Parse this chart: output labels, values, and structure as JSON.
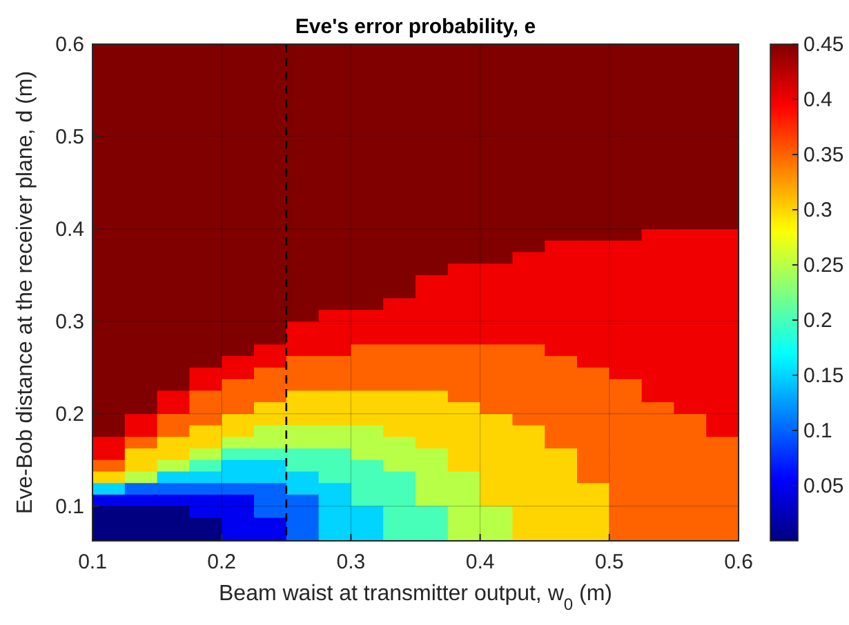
{
  "chart_data": {
    "type": "heatmap",
    "title": "Eve's error probability, e",
    "xlabel": "Beam waist at transmitter output, w$_{0}$ (m)",
    "ylabel": "Eve-Bob distance at the receiver plane, d (m)",
    "xlim": [
      0.1,
      0.6
    ],
    "xticks": [
      0.1,
      0.2,
      0.3,
      0.4,
      0.5,
      0.6
    ],
    "ylim": [
      0.0625,
      0.6
    ],
    "yticks": [
      0.1,
      0.2,
      0.3,
      0.4,
      0.5,
      0.6
    ],
    "clim": [
      0,
      0.45
    ],
    "cticks": [
      0.05,
      0.1,
      0.15,
      0.2,
      0.25,
      0.3,
      0.35,
      0.4,
      0.45
    ],
    "grid": true,
    "ref_lines": [
      {
        "axis": "x",
        "value": 0.25,
        "label": null,
        "color": "#000000",
        "line_style": "dashed"
      }
    ],
    "cells": [
      [
        0.45,
        0.45,
        0.45,
        0.45,
        0.45,
        0.45,
        0.45,
        0.45,
        0.45,
        0.45,
        0.45,
        0.45,
        0.45,
        0.45,
        0.45,
        0.45,
        0.45,
        0.45,
        0.45,
        0.45
      ],
      [
        0.45,
        0.45,
        0.45,
        0.45,
        0.45,
        0.45,
        0.45,
        0.45,
        0.45,
        0.45,
        0.45,
        0.45,
        0.45,
        0.45,
        0.45,
        0.45,
        0.45,
        0.45,
        0.45,
        0.45
      ],
      [
        0.45,
        0.45,
        0.45,
        0.45,
        0.45,
        0.45,
        0.45,
        0.45,
        0.45,
        0.45,
        0.45,
        0.45,
        0.45,
        0.45,
        0.45,
        0.45,
        0.45,
        0.45,
        0.45,
        0.45
      ],
      [
        0.45,
        0.45,
        0.45,
        0.45,
        0.45,
        0.45,
        0.45,
        0.45,
        0.45,
        0.45,
        0.45,
        0.45,
        0.45,
        0.45,
        0.45,
        0.45,
        0.45,
        0.45,
        0.45,
        0.45
      ],
      [
        0.45,
        0.45,
        0.45,
        0.45,
        0.45,
        0.45,
        0.45,
        0.45,
        0.45,
        0.45,
        0.45,
        0.45,
        0.45,
        0.45,
        0.45,
        0.45,
        0.45,
        0.45,
        0.45,
        0.45
      ],
      [
        0.45,
        0.45,
        0.45,
        0.45,
        0.45,
        0.45,
        0.45,
        0.45,
        0.45,
        0.45,
        0.45,
        0.45,
        0.45,
        0.45,
        0.45,
        0.45,
        0.45,
        0.45,
        0.45,
        0.45
      ],
      [
        0.45,
        0.45,
        0.45,
        0.45,
        0.45,
        0.45,
        0.45,
        0.45,
        0.45,
        0.45,
        0.45,
        0.45,
        0.45,
        0.45,
        0.45,
        0.45,
        0.45,
        0.45,
        0.45,
        0.45
      ],
      [
        0.45,
        0.45,
        0.45,
        0.45,
        0.45,
        0.45,
        0.45,
        0.45,
        0.45,
        0.45,
        0.45,
        0.45,
        0.45,
        0.45,
        0.45,
        0.45,
        0.45,
        0.45,
        0.45,
        0.45
      ],
      [
        0.45,
        0.45,
        0.45,
        0.45,
        0.45,
        0.45,
        0.45,
        0.45,
        0.45,
        0.45,
        0.45,
        0.45,
        0.45,
        0.45,
        0.45,
        0.45,
        0.45,
        0.45,
        0.45,
        0.45
      ],
      [
        0.45,
        0.45,
        0.45,
        0.45,
        0.45,
        0.45,
        0.45,
        0.45,
        0.45,
        0.45,
        0.45,
        0.45,
        0.45,
        0.45,
        0.45,
        0.45,
        0.45,
        0.45,
        0.45,
        0.45
      ],
      [
        0.45,
        0.45,
        0.45,
        0.45,
        0.45,
        0.45,
        0.45,
        0.45,
        0.45,
        0.45,
        0.45,
        0.45,
        0.45,
        0.45,
        0.45,
        0.45,
        0.45,
        0.45,
        0.45,
        0.45
      ],
      [
        0.45,
        0.45,
        0.45,
        0.45,
        0.45,
        0.45,
        0.45,
        0.45,
        0.45,
        0.45,
        0.45,
        0.45,
        0.45,
        0.45,
        0.45,
        0.45,
        0.45,
        0.45,
        0.45,
        0.45
      ],
      [
        0.45,
        0.45,
        0.45,
        0.45,
        0.45,
        0.45,
        0.45,
        0.45,
        0.45,
        0.45,
        0.45,
        0.45,
        0.45,
        0.45,
        0.45,
        0.45,
        0.45,
        0.45,
        0.45,
        0.45
      ],
      [
        0.45,
        0.45,
        0.45,
        0.45,
        0.45,
        0.45,
        0.45,
        0.45,
        0.45,
        0.45,
        0.45,
        0.45,
        0.45,
        0.45,
        0.45,
        0.45,
        0.45,
        0.45,
        0.45,
        0.45
      ],
      [
        0.45,
        0.45,
        0.45,
        0.45,
        0.45,
        0.45,
        0.45,
        0.45,
        0.45,
        0.45,
        0.45,
        0.45,
        0.45,
        0.45,
        0.45,
        0.45,
        0.45,
        0.45,
        0.45,
        0.45
      ],
      [
        0.45,
        0.45,
        0.45,
        0.45,
        0.45,
        0.45,
        0.45,
        0.45,
        0.45,
        0.45,
        0.45,
        0.45,
        0.45,
        0.45,
        0.45,
        0.45,
        0.45,
        0.45,
        0.45,
        0.45
      ],
      [
        0.45,
        0.45,
        0.45,
        0.45,
        0.45,
        0.45,
        0.45,
        0.45,
        0.45,
        0.45,
        0.45,
        0.45,
        0.45,
        0.45,
        0.45,
        0.45,
        0.45,
        0.4,
        0.4,
        0.4
      ],
      [
        0.45,
        0.45,
        0.45,
        0.45,
        0.45,
        0.45,
        0.45,
        0.45,
        0.45,
        0.45,
        0.45,
        0.45,
        0.45,
        0.45,
        0.4,
        0.4,
        0.4,
        0.4,
        0.4,
        0.4
      ],
      [
        0.45,
        0.45,
        0.45,
        0.45,
        0.45,
        0.45,
        0.45,
        0.45,
        0.45,
        0.45,
        0.45,
        0.45,
        0.45,
        0.4,
        0.4,
        0.4,
        0.4,
        0.4,
        0.4,
        0.4
      ],
      [
        0.45,
        0.45,
        0.45,
        0.45,
        0.45,
        0.45,
        0.45,
        0.45,
        0.45,
        0.45,
        0.45,
        0.4,
        0.4,
        0.4,
        0.4,
        0.4,
        0.4,
        0.4,
        0.4,
        0.4
      ],
      [
        0.45,
        0.45,
        0.45,
        0.45,
        0.45,
        0.45,
        0.45,
        0.45,
        0.45,
        0.45,
        0.4,
        0.4,
        0.4,
        0.4,
        0.4,
        0.4,
        0.4,
        0.4,
        0.4,
        0.4
      ],
      [
        0.45,
        0.45,
        0.45,
        0.45,
        0.45,
        0.45,
        0.45,
        0.45,
        0.45,
        0.45,
        0.4,
        0.4,
        0.4,
        0.4,
        0.4,
        0.4,
        0.4,
        0.4,
        0.4,
        0.4
      ],
      [
        0.45,
        0.45,
        0.45,
        0.45,
        0.45,
        0.45,
        0.45,
        0.45,
        0.45,
        0.4,
        0.4,
        0.4,
        0.4,
        0.4,
        0.4,
        0.4,
        0.4,
        0.4,
        0.4,
        0.4
      ],
      [
        0.45,
        0.45,
        0.45,
        0.45,
        0.45,
        0.45,
        0.45,
        0.4,
        0.4,
        0.4,
        0.4,
        0.4,
        0.4,
        0.4,
        0.4,
        0.4,
        0.4,
        0.4,
        0.4,
        0.4
      ],
      [
        0.45,
        0.45,
        0.45,
        0.45,
        0.45,
        0.45,
        0.4,
        0.4,
        0.4,
        0.4,
        0.4,
        0.4,
        0.4,
        0.4,
        0.4,
        0.4,
        0.4,
        0.4,
        0.4,
        0.4
      ],
      [
        0.45,
        0.45,
        0.45,
        0.45,
        0.45,
        0.45,
        0.4,
        0.4,
        0.4,
        0.4,
        0.4,
        0.4,
        0.4,
        0.4,
        0.4,
        0.4,
        0.4,
        0.4,
        0.4,
        0.4
      ],
      [
        0.45,
        0.45,
        0.45,
        0.45,
        0.45,
        0.4,
        0.4,
        0.4,
        0.35,
        0.35,
        0.35,
        0.35,
        0.35,
        0.35,
        0.4,
        0.4,
        0.4,
        0.4,
        0.4,
        0.4
      ],
      [
        0.45,
        0.45,
        0.45,
        0.45,
        0.4,
        0.4,
        0.35,
        0.35,
        0.35,
        0.35,
        0.35,
        0.35,
        0.35,
        0.35,
        0.35,
        0.4,
        0.4,
        0.4,
        0.4,
        0.4
      ],
      [
        0.45,
        0.45,
        0.45,
        0.4,
        0.4,
        0.35,
        0.35,
        0.35,
        0.35,
        0.35,
        0.35,
        0.35,
        0.35,
        0.35,
        0.35,
        0.35,
        0.4,
        0.4,
        0.4,
        0.4
      ],
      [
        0.45,
        0.45,
        0.45,
        0.4,
        0.35,
        0.35,
        0.35,
        0.35,
        0.35,
        0.35,
        0.35,
        0.35,
        0.35,
        0.35,
        0.35,
        0.35,
        0.35,
        0.4,
        0.4,
        0.4
      ],
      [
        0.45,
        0.45,
        0.4,
        0.35,
        0.35,
        0.35,
        0.3,
        0.3,
        0.3,
        0.3,
        0.3,
        0.35,
        0.35,
        0.35,
        0.35,
        0.35,
        0.35,
        0.4,
        0.4,
        0.4
      ],
      [
        0.45,
        0.45,
        0.4,
        0.35,
        0.35,
        0.3,
        0.3,
        0.3,
        0.3,
        0.3,
        0.3,
        0.3,
        0.35,
        0.35,
        0.35,
        0.35,
        0.35,
        0.35,
        0.4,
        0.4
      ],
      [
        0.45,
        0.4,
        0.35,
        0.35,
        0.3,
        0.3,
        0.3,
        0.3,
        0.3,
        0.3,
        0.3,
        0.3,
        0.3,
        0.35,
        0.35,
        0.35,
        0.35,
        0.35,
        0.35,
        0.4
      ],
      [
        0.45,
        0.4,
        0.35,
        0.3,
        0.3,
        0.25,
        0.25,
        0.25,
        0.25,
        0.3,
        0.3,
        0.3,
        0.3,
        0.3,
        0.35,
        0.35,
        0.35,
        0.35,
        0.35,
        0.4
      ],
      [
        0.4,
        0.35,
        0.3,
        0.3,
        0.25,
        0.25,
        0.25,
        0.25,
        0.25,
        0.25,
        0.3,
        0.3,
        0.3,
        0.3,
        0.35,
        0.35,
        0.35,
        0.35,
        0.35,
        0.35
      ],
      [
        0.4,
        0.3,
        0.3,
        0.25,
        0.2,
        0.2,
        0.2,
        0.2,
        0.25,
        0.25,
        0.25,
        0.3,
        0.3,
        0.3,
        0.3,
        0.35,
        0.35,
        0.35,
        0.35,
        0.35
      ],
      [
        0.35,
        0.3,
        0.25,
        0.2,
        0.15,
        0.15,
        0.2,
        0.2,
        0.2,
        0.25,
        0.25,
        0.3,
        0.3,
        0.3,
        0.3,
        0.35,
        0.35,
        0.35,
        0.35,
        0.35
      ],
      [
        0.3,
        0.25,
        0.15,
        0.15,
        0.15,
        0.15,
        0.15,
        0.2,
        0.2,
        0.2,
        0.25,
        0.25,
        0.3,
        0.3,
        0.3,
        0.35,
        0.35,
        0.35,
        0.35,
        0.35
      ],
      [
        0.15,
        0.1,
        0.1,
        0.1,
        0.1,
        0.1,
        0.15,
        0.15,
        0.2,
        0.2,
        0.25,
        0.25,
        0.3,
        0.3,
        0.3,
        0.3,
        0.35,
        0.35,
        0.35,
        0.35
      ],
      [
        0.05,
        0.05,
        0.05,
        0.05,
        0.05,
        0.1,
        0.1,
        0.15,
        0.2,
        0.2,
        0.25,
        0.25,
        0.3,
        0.3,
        0.3,
        0.3,
        0.35,
        0.35,
        0.35,
        0.35
      ],
      [
        0,
        0,
        0,
        0.05,
        0.05,
        0.1,
        0.1,
        0.15,
        0.15,
        0.2,
        0.2,
        0.25,
        0.25,
        0.3,
        0.3,
        0.3,
        0.35,
        0.35,
        0.35,
        0.35
      ],
      [
        0,
        0,
        0,
        0,
        0.05,
        0.05,
        0.1,
        0.15,
        0.15,
        0.2,
        0.2,
        0.25,
        0.25,
        0.3,
        0.3,
        0.3,
        0.35,
        0.35,
        0.35,
        0.35
      ],
      [
        0,
        0,
        0,
        0,
        0.05,
        0.05,
        0.1,
        0.15,
        0.15,
        0.2,
        0.2,
        0.25,
        0.25,
        0.3,
        0.3,
        0.3,
        0.35,
        0.35,
        0.35,
        0.35
      ]
    ]
  }
}
